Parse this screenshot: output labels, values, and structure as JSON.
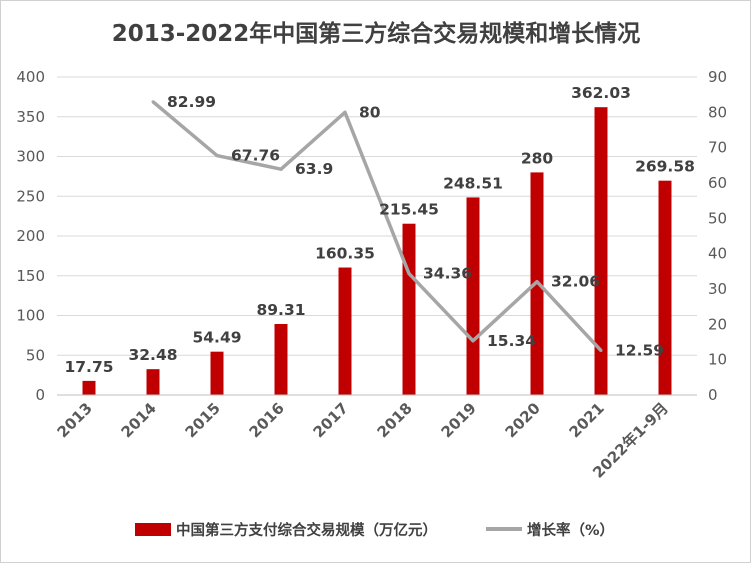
{
  "chart_data": {
    "type": "bar",
    "title": "2013-2022年中国第三方综合交易规模和增长情况",
    "categories": [
      "2013",
      "2014",
      "2015",
      "2016",
      "2017",
      "2018",
      "2019",
      "2020",
      "2021",
      "2022年1-9月"
    ],
    "series": [
      {
        "name": "中国第三方支付综合交易规模（万亿元）",
        "type": "bar",
        "axis": "left",
        "values": [
          17.75,
          32.48,
          54.49,
          89.31,
          160.35,
          215.45,
          248.51,
          280,
          362.03,
          269.58
        ],
        "labels": [
          "17.75",
          "32.48",
          "54.49",
          "89.31",
          "160.35",
          "215.45",
          "248.51",
          "280",
          "362.03",
          "269.58"
        ],
        "color": "#c00000"
      },
      {
        "name": "增长率（%）",
        "type": "line",
        "axis": "right",
        "values": [
          null,
          82.99,
          67.76,
          63.9,
          80,
          34.36,
          15.34,
          32.06,
          12.59,
          null
        ],
        "labels": [
          "",
          "82.99",
          "67.76",
          "63.9",
          "80",
          "34.36",
          "15.34",
          "32.06",
          "12.59",
          ""
        ],
        "color": "#a6a6a6"
      }
    ],
    "y_left": {
      "min": 0,
      "max": 400,
      "ticks": [
        "0",
        "50",
        "100",
        "150",
        "200",
        "250",
        "300",
        "350",
        "400"
      ]
    },
    "y_right": {
      "min": 0,
      "max": 90,
      "ticks": [
        "0",
        "10",
        "20",
        "30",
        "40",
        "50",
        "60",
        "70",
        "80",
        "90"
      ]
    },
    "grid": true,
    "legend_position": "bottom"
  }
}
